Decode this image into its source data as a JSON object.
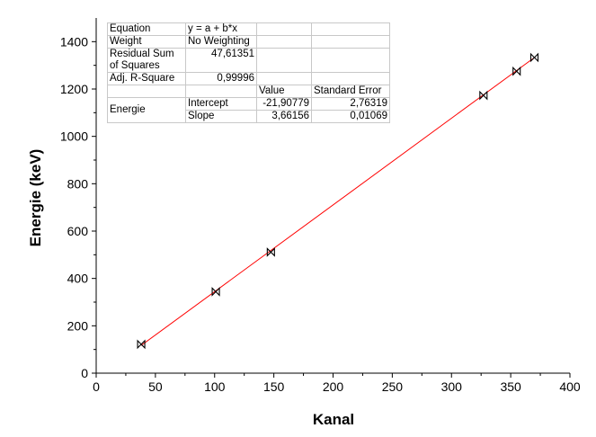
{
  "chart_data": {
    "type": "scatter",
    "xlabel": "Kanal",
    "ylabel": "Energie (keV)",
    "xlim": [
      0,
      400
    ],
    "ylim": [
      0,
      1500
    ],
    "x_ticks": [
      "0",
      "50",
      "100",
      "150",
      "200",
      "250",
      "300",
      "350",
      "400"
    ],
    "y_ticks": [
      "0",
      "200",
      "400",
      "600",
      "800",
      "1000",
      "1200",
      "1400"
    ],
    "grid": false,
    "series": [
      {
        "marker": "bowtie",
        "color": "#000000",
        "points": [
          {
            "x": 38,
            "y": 122
          },
          {
            "x": 101,
            "y": 344
          },
          {
            "x": 147.5,
            "y": 511
          },
          {
            "x": 327,
            "y": 1173
          },
          {
            "x": 355,
            "y": 1275
          },
          {
            "x": 370,
            "y": 1333
          }
        ]
      }
    ],
    "fit": {
      "color": "#ff0000",
      "x_range": [
        38,
        370
      ],
      "intercept": -21.90779,
      "slope": 3.66156
    }
  },
  "table": {
    "equation_label": "Equation",
    "equation_value": "y = a + b*x",
    "weight_label": "Weight",
    "weight_value": "No Weighting",
    "rss_label": "Residual Sum of Squares",
    "rss_value": "47,61351",
    "r2_label": "Adj. R-Square",
    "r2_value": "0,99996",
    "value_header": "Value",
    "error_header": "Standard Error",
    "param_group": "Energie",
    "intercept_label": "Intercept",
    "intercept_value": "-21,90779",
    "intercept_error": "2,76319",
    "slope_label": "Slope",
    "slope_value": "3,66156",
    "slope_error": "0,01069"
  }
}
